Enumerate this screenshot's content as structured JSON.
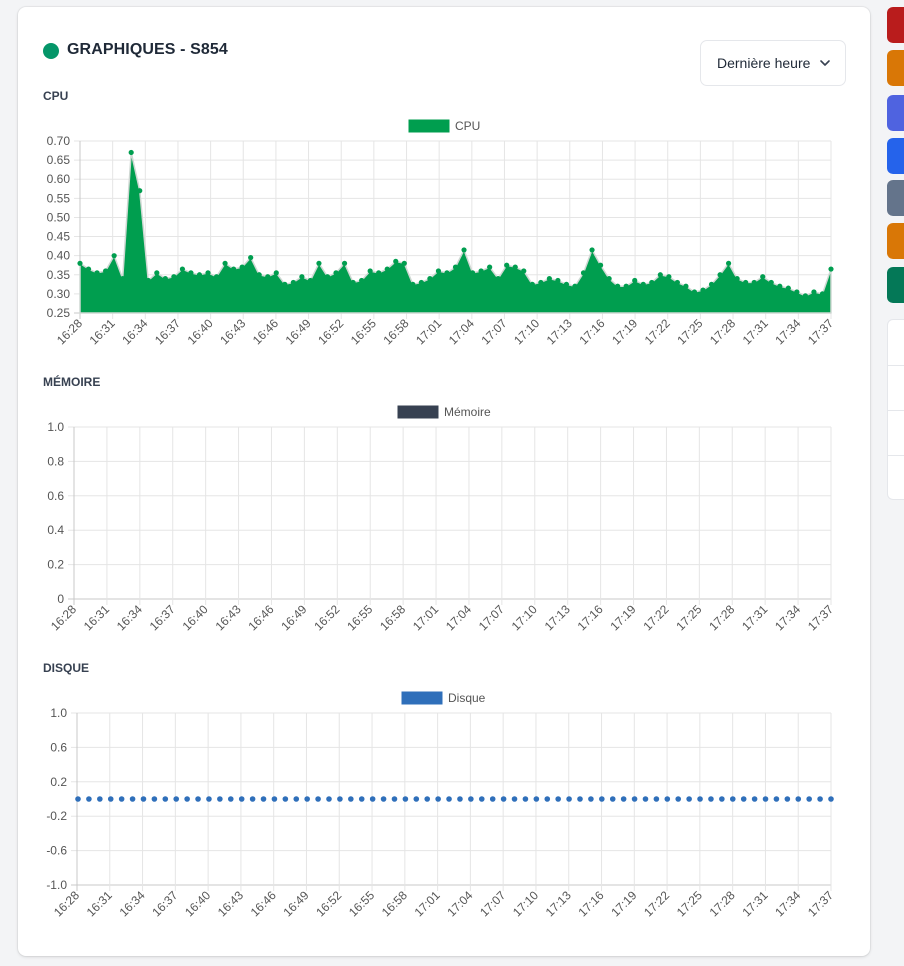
{
  "card": {
    "title": "GRAPHIQUES - S854",
    "status_color": "#059669",
    "range_select": {
      "value": "Dernière heure",
      "icon": "chevron-down-icon"
    }
  },
  "sidebar_buttons": [
    {
      "name": "red-action-button",
      "color": "#b91c1c"
    },
    {
      "name": "orange-action-button",
      "color": "#d97706"
    },
    {
      "name": "indigo-action-button",
      "color": "#4f63e0"
    },
    {
      "name": "blue-action-button",
      "color": "#2563eb"
    },
    {
      "name": "gray-action-button",
      "color": "#64748b"
    },
    {
      "name": "amber-action-button",
      "color": "#d97706"
    },
    {
      "name": "green-action-button",
      "color": "#047857"
    }
  ],
  "chart_data": [
    {
      "type": "area",
      "section_label": "CPU",
      "series": [
        {
          "name": "CPU",
          "color": "#009e4f",
          "values": [
            0.38,
            0.365,
            0.355,
            0.36,
            0.4,
            0.34,
            0.67,
            0.57,
            0.335,
            0.355,
            0.34,
            0.345,
            0.365,
            0.355,
            0.35,
            0.355,
            0.345,
            0.38,
            0.365,
            0.37,
            0.395,
            0.35,
            0.345,
            0.355,
            0.325,
            0.33,
            0.345,
            0.335,
            0.38,
            0.345,
            0.355,
            0.38,
            0.33,
            0.335,
            0.36,
            0.355,
            0.365,
            0.385,
            0.38,
            0.325,
            0.33,
            0.34,
            0.36,
            0.355,
            0.37,
            0.415,
            0.355,
            0.36,
            0.37,
            0.34,
            0.375,
            0.37,
            0.36,
            0.325,
            0.33,
            0.34,
            0.335,
            0.325,
            0.32,
            0.355,
            0.415,
            0.375,
            0.34,
            0.32,
            0.32,
            0.335,
            0.325,
            0.33,
            0.35,
            0.345,
            0.33,
            0.32,
            0.305,
            0.31,
            0.325,
            0.35,
            0.38,
            0.34,
            0.33,
            0.33,
            0.345,
            0.33,
            0.32,
            0.315,
            0.305,
            0.295,
            0.305,
            0.3,
            0.365
          ]
        }
      ],
      "x_ticks": [
        "16:28",
        "16:31",
        "16:34",
        "16:37",
        "16:40",
        "16:43",
        "16:46",
        "16:49",
        "16:52",
        "16:55",
        "16:58",
        "17:01",
        "17:04",
        "17:07",
        "17:10",
        "17:13",
        "17:16",
        "17:19",
        "17:22",
        "17:25",
        "17:28",
        "17:31",
        "17:34",
        "17:37"
      ],
      "y_ticks": [
        "0.70",
        "0.65",
        "0.60",
        "0.55",
        "0.50",
        "0.45",
        "0.40",
        "0.35",
        "0.30",
        "0.25"
      ],
      "ylim": [
        0.25,
        0.7
      ],
      "legend_position": "top-center",
      "grid": true
    },
    {
      "type": "line",
      "section_label": "MÉMOIRE",
      "series": [
        {
          "name": "Mémoire",
          "color": "#374151",
          "values": []
        }
      ],
      "x_ticks": [
        "16:28",
        "16:31",
        "16:34",
        "16:37",
        "16:40",
        "16:43",
        "16:46",
        "16:49",
        "16:52",
        "16:55",
        "16:58",
        "17:01",
        "17:04",
        "17:07",
        "17:10",
        "17:13",
        "17:16",
        "17:19",
        "17:22",
        "17:25",
        "17:28",
        "17:31",
        "17:34",
        "17:37"
      ],
      "y_ticks": [
        "1.0",
        "0.8",
        "0.6",
        "0.4",
        "0.2",
        "0"
      ],
      "ylim": [
        0,
        1.0
      ],
      "legend_position": "top-center",
      "grid": true
    },
    {
      "type": "line",
      "section_label": "DISQUE",
      "series": [
        {
          "name": "Disque",
          "color": "#2f6fba",
          "constant_value": 0,
          "point_count": 70
        }
      ],
      "x_ticks": [
        "16:28",
        "16:31",
        "16:34",
        "16:37",
        "16:40",
        "16:43",
        "16:46",
        "16:49",
        "16:52",
        "16:55",
        "16:58",
        "17:01",
        "17:04",
        "17:07",
        "17:10",
        "17:13",
        "17:16",
        "17:19",
        "17:22",
        "17:25",
        "17:28",
        "17:31",
        "17:34",
        "17:37"
      ],
      "y_ticks": [
        "1.0",
        "0.6",
        "0.2",
        "-0.2",
        "-0.6",
        "-1.0"
      ],
      "ylim": [
        -1.0,
        1.0
      ],
      "legend_position": "top-center",
      "grid": true
    }
  ]
}
